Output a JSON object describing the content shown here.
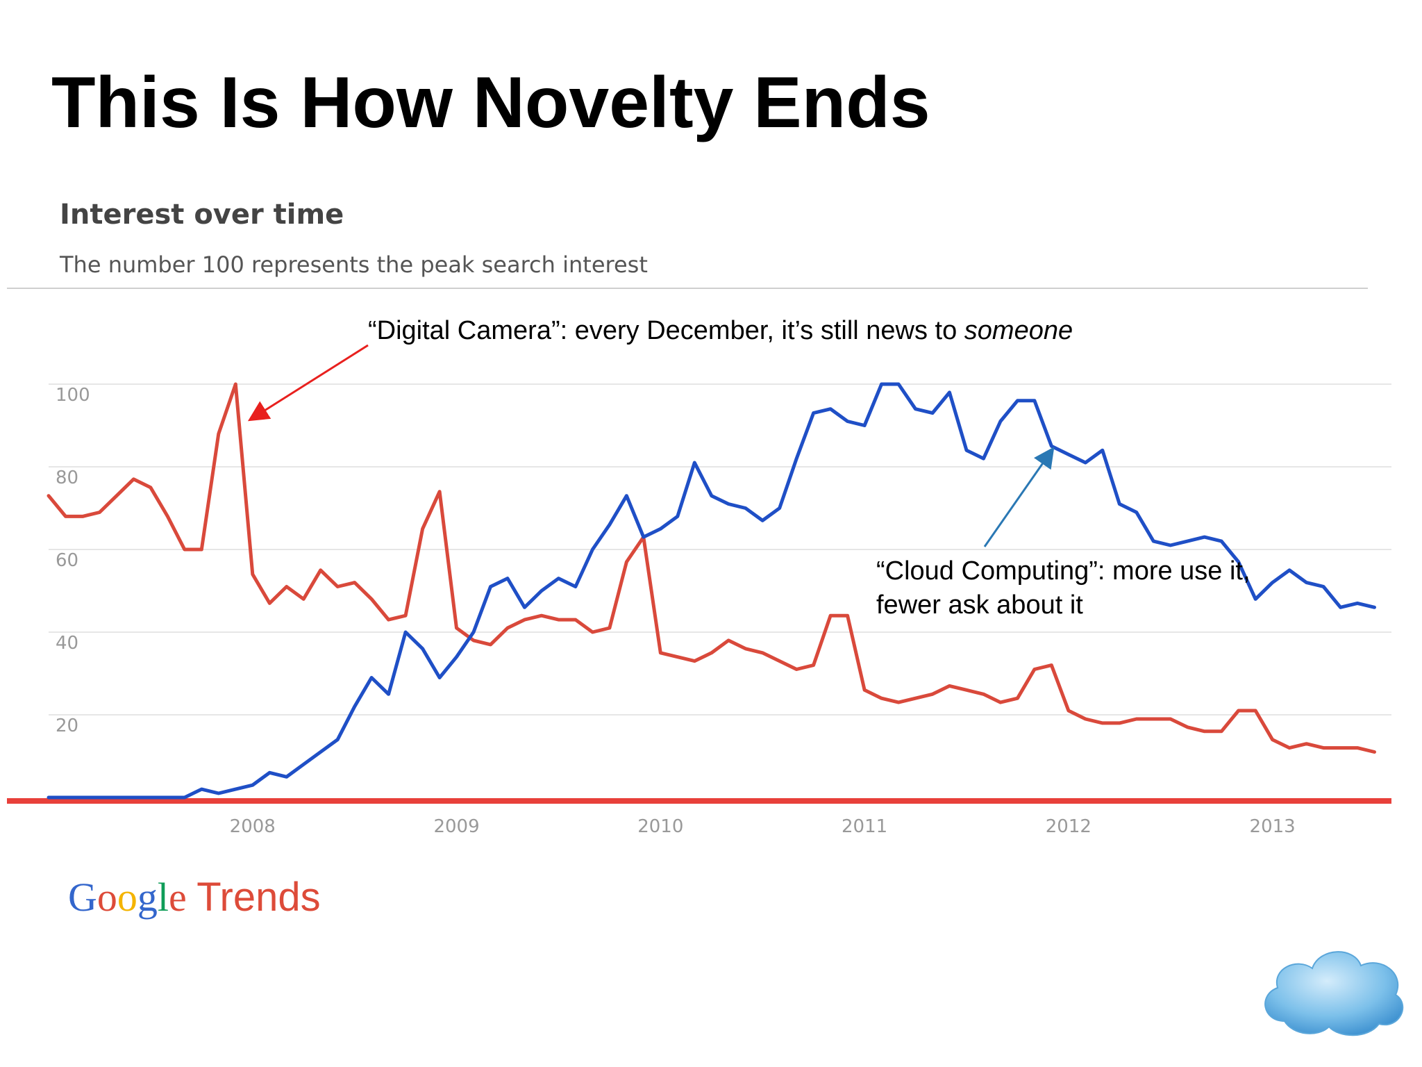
{
  "slide": {
    "title": "This Is How Novelty Ends"
  },
  "panel": {
    "title": "Interest over time",
    "subtitle": "The number 100 represents the peak search interest"
  },
  "annotations": {
    "camera_prefix": "“Digital Camera”: every December, it’s still news to ",
    "camera_emphasis": "someone",
    "cloud": "“Cloud Computing”: more use it, fewer ask about it"
  },
  "footer": {
    "google_letters": [
      {
        "char": "G",
        "color": "#3366cc"
      },
      {
        "char": "o",
        "color": "#dd4b39"
      },
      {
        "char": "o",
        "color": "#f4b400"
      },
      {
        "char": "g",
        "color": "#3366cc"
      },
      {
        "char": "l",
        "color": "#0f9d58"
      },
      {
        "char": "e",
        "color": "#dd4b39"
      }
    ],
    "trends": "Trends"
  },
  "colors": {
    "digital_camera": "#d9493b",
    "cloud_computing": "#1f4fc6",
    "grid": "#e6e6e6",
    "ticks": "#999999",
    "camera_arrow": "#e8201e",
    "cloud_arrow": "#2a78b4"
  },
  "icons": {
    "brand_logo": "cloud-icon"
  },
  "chart_data": {
    "type": "line",
    "title": "",
    "xlabel": "",
    "ylabel": "",
    "ylim": [
      0,
      100
    ],
    "yticks": [
      20,
      40,
      60,
      80,
      100
    ],
    "xlim": [
      "2007-01",
      "2013-08"
    ],
    "xticks": [
      {
        "label": "2008",
        "date": "2008-01"
      },
      {
        "label": "2009",
        "date": "2009-01"
      },
      {
        "label": "2010",
        "date": "2010-01"
      },
      {
        "label": "2011",
        "date": "2011-01"
      },
      {
        "label": "2012",
        "date": "2012-01"
      },
      {
        "label": "2013",
        "date": "2013-01"
      }
    ],
    "grid": true,
    "legend": "none",
    "series": [
      {
        "key": "digital_camera",
        "points": [
          [
            "2007-01",
            73
          ],
          [
            "2007-02",
            68
          ],
          [
            "2007-03",
            68
          ],
          [
            "2007-04",
            69
          ],
          [
            "2007-05",
            73
          ],
          [
            "2007-06",
            77
          ],
          [
            "2007-07",
            75
          ],
          [
            "2007-08",
            68
          ],
          [
            "2007-09",
            60
          ],
          [
            "2007-10",
            60
          ],
          [
            "2007-11",
            88
          ],
          [
            "2007-12",
            100
          ],
          [
            "2008-01",
            54
          ],
          [
            "2008-02",
            47
          ],
          [
            "2008-03",
            51
          ],
          [
            "2008-04",
            48
          ],
          [
            "2008-05",
            55
          ],
          [
            "2008-06",
            51
          ],
          [
            "2008-07",
            52
          ],
          [
            "2008-08",
            48
          ],
          [
            "2008-09",
            43
          ],
          [
            "2008-10",
            44
          ],
          [
            "2008-11",
            65
          ],
          [
            "2008-12",
            74
          ],
          [
            "2009-01",
            41
          ],
          [
            "2009-02",
            38
          ],
          [
            "2009-03",
            37
          ],
          [
            "2009-04",
            41
          ],
          [
            "2009-05",
            43
          ],
          [
            "2009-06",
            44
          ],
          [
            "2009-07",
            43
          ],
          [
            "2009-08",
            43
          ],
          [
            "2009-09",
            40
          ],
          [
            "2009-10",
            41
          ],
          [
            "2009-11",
            57
          ],
          [
            "2009-12",
            63
          ],
          [
            "2010-01",
            35
          ],
          [
            "2010-02",
            34
          ],
          [
            "2010-03",
            33
          ],
          [
            "2010-04",
            35
          ],
          [
            "2010-05",
            38
          ],
          [
            "2010-06",
            36
          ],
          [
            "2010-07",
            35
          ],
          [
            "2010-08",
            33
          ],
          [
            "2010-09",
            31
          ],
          [
            "2010-10",
            32
          ],
          [
            "2010-11",
            44
          ],
          [
            "2010-12",
            44
          ],
          [
            "2011-01",
            26
          ],
          [
            "2011-02",
            24
          ],
          [
            "2011-03",
            23
          ],
          [
            "2011-04",
            24
          ],
          [
            "2011-05",
            25
          ],
          [
            "2011-06",
            27
          ],
          [
            "2011-07",
            26
          ],
          [
            "2011-08",
            25
          ],
          [
            "2011-09",
            23
          ],
          [
            "2011-10",
            24
          ],
          [
            "2011-11",
            31
          ],
          [
            "2011-12",
            32
          ],
          [
            "2012-01",
            21
          ],
          [
            "2012-02",
            19
          ],
          [
            "2012-03",
            18
          ],
          [
            "2012-04",
            18
          ],
          [
            "2012-05",
            19
          ],
          [
            "2012-06",
            19
          ],
          [
            "2012-07",
            19
          ],
          [
            "2012-08",
            17
          ],
          [
            "2012-09",
            16
          ],
          [
            "2012-10",
            16
          ],
          [
            "2012-11",
            21
          ],
          [
            "2012-12",
            21
          ],
          [
            "2013-01",
            14
          ],
          [
            "2013-02",
            12
          ],
          [
            "2013-03",
            13
          ],
          [
            "2013-04",
            12
          ],
          [
            "2013-05",
            12
          ],
          [
            "2013-06",
            12
          ],
          [
            "2013-07",
            11
          ]
        ]
      },
      {
        "key": "cloud_computing",
        "points": [
          [
            "2007-01",
            0
          ],
          [
            "2007-09",
            0
          ],
          [
            "2007-10",
            2
          ],
          [
            "2007-11",
            1
          ],
          [
            "2007-12",
            2
          ],
          [
            "2008-01",
            3
          ],
          [
            "2008-02",
            6
          ],
          [
            "2008-03",
            5
          ],
          [
            "2008-04",
            8
          ],
          [
            "2008-05",
            11
          ],
          [
            "2008-06",
            14
          ],
          [
            "2008-07",
            22
          ],
          [
            "2008-08",
            29
          ],
          [
            "2008-09",
            25
          ],
          [
            "2008-10",
            40
          ],
          [
            "2008-11",
            36
          ],
          [
            "2008-12",
            29
          ],
          [
            "2009-01",
            34
          ],
          [
            "2009-02",
            40
          ],
          [
            "2009-03",
            51
          ],
          [
            "2009-04",
            53
          ],
          [
            "2009-05",
            46
          ],
          [
            "2009-06",
            50
          ],
          [
            "2009-07",
            53
          ],
          [
            "2009-08",
            51
          ],
          [
            "2009-09",
            60
          ],
          [
            "2009-10",
            66
          ],
          [
            "2009-11",
            73
          ],
          [
            "2009-12",
            63
          ],
          [
            "2010-01",
            65
          ],
          [
            "2010-02",
            68
          ],
          [
            "2010-03",
            81
          ],
          [
            "2010-04",
            73
          ],
          [
            "2010-05",
            71
          ],
          [
            "2010-06",
            70
          ],
          [
            "2010-07",
            67
          ],
          [
            "2010-08",
            70
          ],
          [
            "2010-09",
            82
          ],
          [
            "2010-10",
            93
          ],
          [
            "2010-11",
            94
          ],
          [
            "2010-12",
            91
          ],
          [
            "2011-01",
            90
          ],
          [
            "2011-02",
            100
          ],
          [
            "2011-03",
            100
          ],
          [
            "2011-04",
            94
          ],
          [
            "2011-05",
            93
          ],
          [
            "2011-06",
            98
          ],
          [
            "2011-07",
            84
          ],
          [
            "2011-08",
            82
          ],
          [
            "2011-09",
            91
          ],
          [
            "2011-10",
            96
          ],
          [
            "2011-11",
            96
          ],
          [
            "2011-12",
            85
          ],
          [
            "2012-01",
            83
          ],
          [
            "2012-02",
            81
          ],
          [
            "2012-03",
            84
          ],
          [
            "2012-04",
            71
          ],
          [
            "2012-05",
            69
          ],
          [
            "2012-06",
            62
          ],
          [
            "2012-07",
            61
          ],
          [
            "2012-08",
            62
          ],
          [
            "2012-09",
            63
          ],
          [
            "2012-10",
            62
          ],
          [
            "2012-11",
            57
          ],
          [
            "2012-12",
            48
          ],
          [
            "2013-01",
            52
          ],
          [
            "2013-02",
            55
          ],
          [
            "2013-03",
            52
          ],
          [
            "2013-04",
            51
          ],
          [
            "2013-05",
            46
          ],
          [
            "2013-06",
            47
          ],
          [
            "2013-07",
            46
          ]
        ]
      }
    ]
  }
}
